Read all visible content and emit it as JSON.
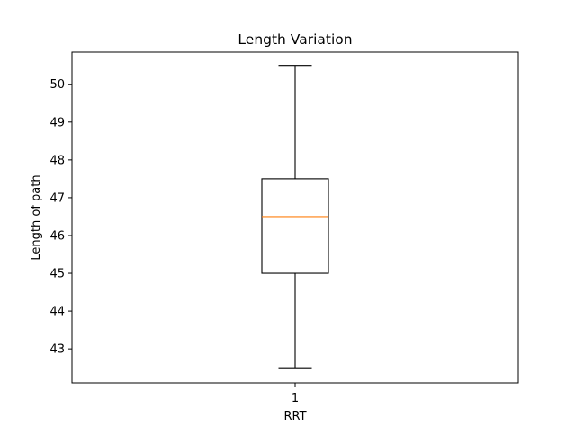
{
  "chart_data": {
    "type": "box",
    "title": "Length Variation",
    "xlabel": "RRT",
    "ylabel": "Length of path",
    "categories": [
      "1"
    ],
    "ylim": [
      42.1,
      50.85
    ],
    "yticks": [
      43,
      44,
      45,
      46,
      47,
      48,
      49,
      50
    ],
    "boxes": [
      {
        "category": "1",
        "whisker_low": 42.5,
        "q1": 45.0,
        "median": 46.5,
        "q3": 47.5,
        "whisker_high": 50.5
      }
    ],
    "grid": false,
    "legend": "none",
    "colors": {
      "box": "#000000",
      "median": "#ff7f0e",
      "background": "#ffffff"
    }
  }
}
